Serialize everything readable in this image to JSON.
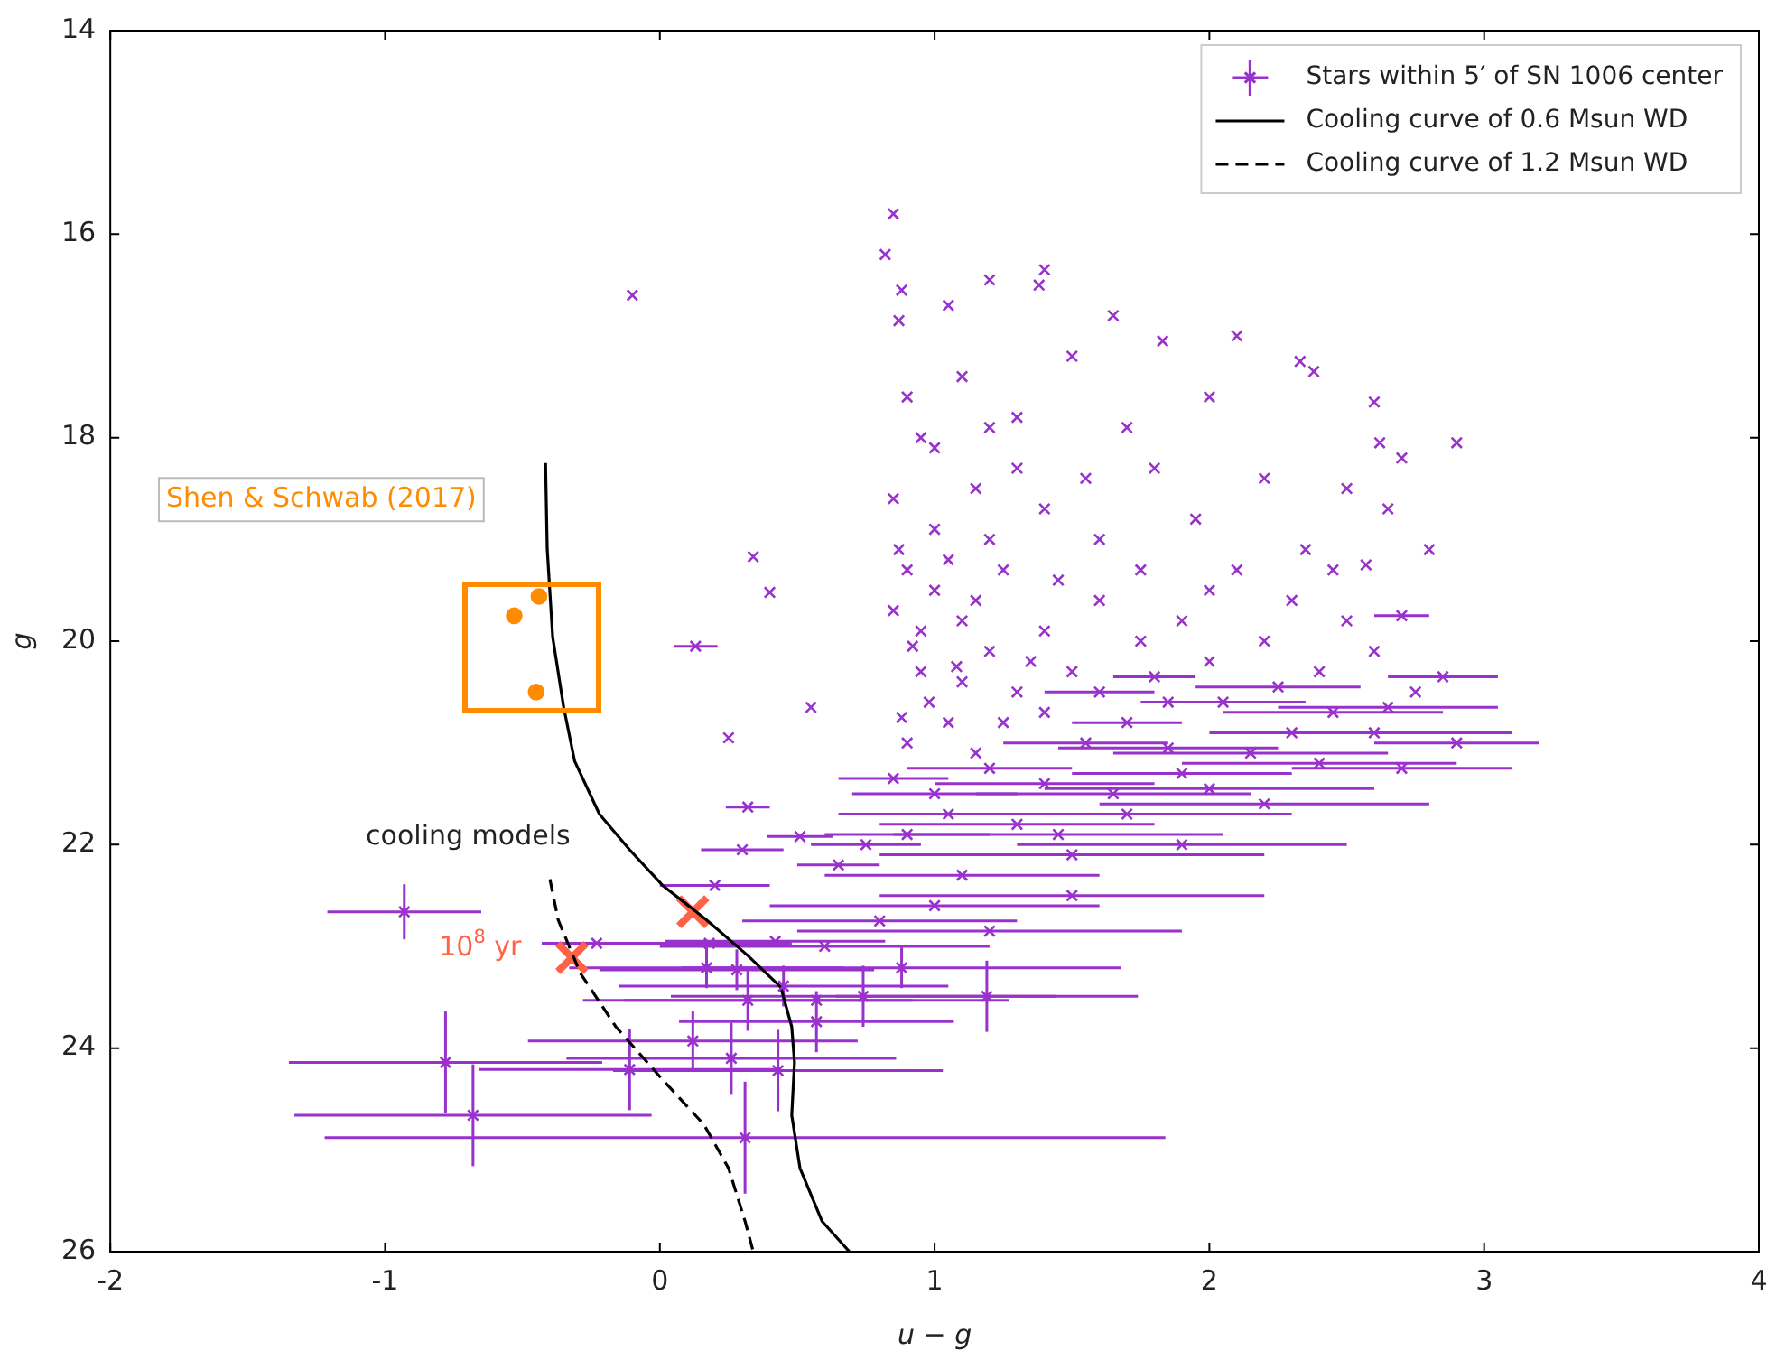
{
  "chart_data": {
    "type": "scatter",
    "xlabel": "u − g",
    "ylabel": "g",
    "xlim": [
      -2,
      4
    ],
    "ylim": [
      26,
      14
    ],
    "xticks": [
      -2,
      -1,
      0,
      1,
      2,
      3,
      4
    ],
    "yticks": [
      14,
      16,
      18,
      20,
      22,
      24,
      26
    ],
    "grid": false,
    "legend": "top right",
    "annotations": [
      "Shen & Schwab (2017)",
      "cooling models",
      {
        "text": "10$^{8}$ yr",
        "x": -0.32,
        "y": 23.11
      }
    ],
    "series": [
      {
        "name": "Stars within 5′ of SN 1006 center",
        "type": "scatter",
        "marker": "cross",
        "color": "#9932cc",
        "x": [
          0.85,
          0.82,
          -0.1,
          0.88,
          1.4,
          1.38,
          1.2,
          1.05,
          0.87,
          1.65,
          1.83,
          2.33,
          2.38,
          2.6,
          2.62,
          2.7,
          2.9,
          2.0,
          2.1,
          1.5,
          1.1,
          0.9,
          1.3,
          1.7,
          0.95,
          1.8,
          2.2,
          2.5,
          2.65,
          0.85,
          1.0,
          1.15,
          1.4,
          1.6,
          1.95,
          2.35,
          2.57,
          2.8,
          0.87,
          0.85,
          0.55,
          0.34,
          0.4,
          0.13,
          0.25,
          0.51,
          0.32,
          1.0,
          1.1,
          1.2,
          0.95,
          1.3,
          1.05,
          1.15,
          0.9,
          1.25,
          1.4,
          1.5,
          1.6,
          1.75,
          1.85,
          2.0,
          2.2,
          2.4,
          2.6,
          2.75,
          2.5,
          2.7,
          2.0,
          1.7,
          2.3,
          2.6,
          2.9,
          2.4,
          1.9,
          1.4,
          1.0,
          0.9,
          1.3,
          1.7,
          2.2,
          1.5,
          1.1,
          0.75,
          1.9,
          0.65,
          1.0,
          0.8,
          1.5,
          0.2,
          0.3,
          1.2,
          0.6,
          0.42,
          -0.93,
          -0.23,
          0.18,
          0.17,
          0.28,
          0.32,
          0.45,
          0.57,
          0.74,
          0.88,
          1.19,
          0.12,
          0.26,
          -0.11,
          0.43,
          -0.78,
          -0.68,
          0.31,
          0.57,
          0.9,
          1.05,
          1.15,
          0.95,
          1.2,
          1.1,
          0.98,
          1.25,
          1.35,
          1.45,
          1.55,
          1.3,
          1.0,
          1.2,
          1.75,
          1.9,
          2.1,
          2.3,
          2.45,
          1.6,
          1.8,
          2.05,
          2.25,
          2.45,
          2.65,
          2.85,
          1.55,
          1.85,
          2.15,
          2.7,
          1.2,
          1.65,
          2.0,
          1.05,
          1.45,
          0.85,
          0.92,
          1.08,
          0.88,
          1.4
        ],
        "values": [
          15.8,
          16.2,
          16.6,
          16.55,
          16.35,
          16.5,
          16.45,
          16.7,
          16.85,
          16.8,
          17.05,
          17.25,
          17.35,
          17.65,
          18.05,
          18.2,
          18.05,
          17.6,
          17.0,
          17.2,
          17.4,
          17.6,
          17.8,
          17.9,
          18.0,
          18.3,
          18.4,
          18.5,
          18.7,
          18.6,
          18.9,
          18.5,
          18.7,
          19.0,
          18.8,
          19.1,
          19.25,
          19.1,
          19.1,
          19.7,
          20.65,
          19.17,
          19.52,
          20.05,
          20.95,
          21.92,
          21.63,
          19.5,
          19.8,
          20.1,
          20.3,
          20.5,
          20.8,
          21.1,
          21.0,
          19.3,
          19.9,
          20.3,
          19.6,
          20.0,
          20.6,
          20.2,
          20.0,
          20.3,
          20.1,
          20.5,
          19.8,
          19.75,
          19.5,
          20.8,
          20.9,
          20.9,
          21.0,
          21.2,
          21.3,
          21.4,
          21.5,
          21.9,
          21.8,
          21.7,
          21.6,
          22.1,
          22.3,
          22.0,
          22.0,
          22.2,
          22.6,
          22.75,
          22.5,
          22.4,
          22.05,
          22.85,
          23.0,
          22.95,
          22.66,
          22.97,
          22.97,
          23.21,
          23.23,
          23.53,
          23.39,
          23.53,
          23.49,
          23.21,
          23.49,
          23.93,
          24.1,
          24.21,
          24.22,
          24.14,
          24.66,
          24.88,
          23.74,
          19.3,
          19.2,
          19.6,
          19.9,
          19.0,
          20.4,
          20.6,
          20.8,
          20.2,
          19.4,
          18.4,
          18.3,
          18.1,
          17.9,
          19.3,
          19.8,
          19.3,
          19.6,
          19.3,
          20.5,
          20.35,
          20.6,
          20.45,
          20.7,
          20.65,
          20.35,
          21.0,
          21.05,
          21.1,
          21.25,
          21.25,
          21.5,
          21.45,
          21.7,
          21.9,
          21.35,
          20.05,
          20.25,
          20.75,
          20.7
        ],
        "xerrors": [
          null,
          null,
          null,
          null,
          null,
          null,
          null,
          null,
          null,
          null,
          null,
          null,
          null,
          null,
          null,
          null,
          null,
          null,
          null,
          null,
          null,
          null,
          null,
          null,
          null,
          null,
          null,
          null,
          null,
          null,
          null,
          null,
          null,
          null,
          null,
          null,
          null,
          null,
          null,
          null,
          null,
          null,
          null,
          0.08,
          null,
          0.12,
          0.08,
          null,
          null,
          null,
          null,
          null,
          null,
          null,
          null,
          null,
          null,
          null,
          null,
          null,
          null,
          null,
          null,
          null,
          null,
          null,
          null,
          0.1,
          null,
          0.2,
          0.3,
          0.5,
          0.3,
          0.5,
          0.4,
          0.4,
          0.3,
          0.3,
          0.5,
          0.6,
          0.6,
          0.7,
          0.5,
          0.2,
          0.6,
          0.15,
          0.6,
          0.5,
          0.7,
          0.2,
          0.15,
          0.7,
          0.6,
          0.4,
          0.28,
          0.2,
          0.3,
          0.5,
          0.5,
          0.6,
          0.6,
          0.7,
          0.7,
          0.8,
          0.55,
          0.6,
          0.6,
          0.55,
          0.6,
          0.57,
          0.65,
          1.53,
          0.5,
          null,
          null,
          null,
          null,
          null,
          null,
          null,
          null,
          null,
          null,
          null,
          null,
          null,
          null,
          null,
          null,
          null,
          null,
          null,
          0.2,
          0.15,
          0.3,
          0.3,
          0.4,
          0.4,
          0.2,
          0.3,
          0.4,
          0.5,
          0.4,
          0.3,
          0.5,
          0.6,
          0.4,
          0.6,
          0.2,
          null,
          null,
          null,
          null
        ],
        "errors": [
          null,
          null,
          null,
          null,
          null,
          null,
          null,
          null,
          null,
          null,
          null,
          null,
          null,
          null,
          null,
          null,
          null,
          null,
          null,
          null,
          null,
          null,
          null,
          null,
          null,
          null,
          null,
          null,
          null,
          null,
          null,
          null,
          null,
          null,
          null,
          null,
          null,
          null,
          null,
          null,
          null,
          null,
          null,
          null,
          null,
          null,
          null,
          null,
          null,
          null,
          null,
          null,
          null,
          null,
          null,
          null,
          null,
          null,
          null,
          null,
          null,
          null,
          null,
          null,
          null,
          null,
          null,
          null,
          null,
          null,
          null,
          null,
          null,
          null,
          null,
          null,
          null,
          null,
          null,
          null,
          null,
          null,
          null,
          null,
          null,
          null,
          null,
          null,
          null,
          null,
          null,
          null,
          null,
          null,
          0.27,
          null,
          null,
          0.2,
          0.2,
          0.3,
          0.2,
          null,
          0.3,
          0.2,
          0.35,
          0.3,
          0.35,
          0.4,
          0.4,
          0.5,
          0.5,
          0.55,
          0.3,
          null,
          null,
          null,
          null,
          null,
          null,
          null,
          null,
          null,
          null,
          null,
          null,
          null,
          null,
          null,
          null,
          null,
          null,
          null,
          null,
          null,
          null,
          null,
          null,
          null,
          null,
          null,
          null,
          null,
          null,
          null,
          null,
          null,
          null,
          null,
          null,
          null,
          null,
          null,
          null
        ]
      },
      {
        "name": "Cooling curve of 0.6 Msun WD",
        "type": "line",
        "marker": "none",
        "line_style": "solid",
        "color": "#000000",
        "x": [
          -0.416,
          -0.41,
          -0.39,
          -0.35,
          -0.31,
          -0.22,
          -0.11,
          0.01,
          0.17,
          0.32,
          0.44,
          0.48,
          0.49,
          0.48,
          0.51,
          0.59,
          0.69
        ],
        "values": [
          18.25,
          19.09,
          19.96,
          20.65,
          21.18,
          21.7,
          22.05,
          22.4,
          22.74,
          23.09,
          23.4,
          23.79,
          24.14,
          24.66,
          25.18,
          25.7,
          26.0
        ]
      },
      {
        "name": "Cooling curve of 1.2 Msun WD",
        "type": "line",
        "marker": "none",
        "line_style": "dashed",
        "color": "#000000",
        "x": [
          -0.4,
          -0.37,
          -0.29,
          -0.16,
          0.01,
          0.16,
          0.25,
          0.31,
          0.34
        ],
        "values": [
          22.34,
          22.74,
          23.26,
          23.79,
          24.31,
          24.75,
          25.18,
          25.7,
          26.0
        ]
      },
      {
        "type": "scatter",
        "marker": "circle",
        "color": "#ff8c00",
        "x": [
          -0.53,
          -0.44,
          -0.45
        ],
        "values": [
          19.75,
          19.56,
          20.5
        ]
      },
      {
        "type": "scatter",
        "marker": "cross",
        "color": "#ff6347",
        "x": [
          0.12,
          -0.32
        ],
        "values": [
          22.66,
          23.11
        ]
      }
    ]
  }
}
